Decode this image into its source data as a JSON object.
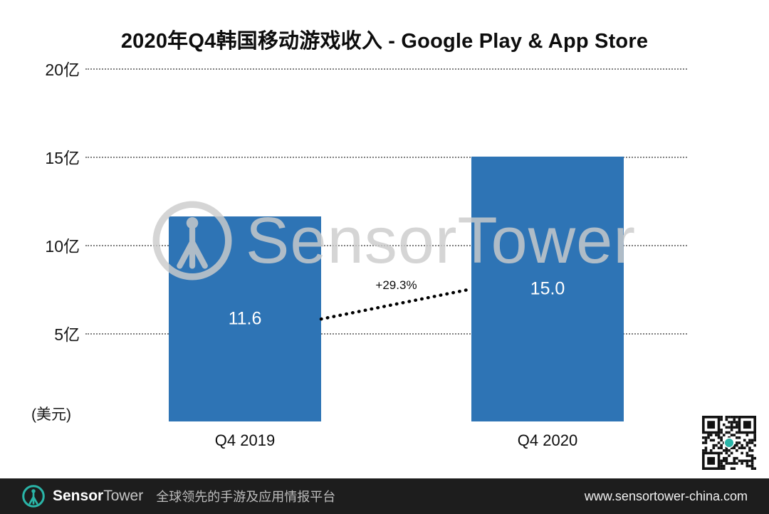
{
  "chart_data": {
    "type": "bar",
    "title": "2020年Q4韩国移动游戏收入 - Google Play & App Store",
    "categories": [
      "Q4 2019",
      "Q4 2020"
    ],
    "values": [
      11.6,
      15.0
    ],
    "value_labels": [
      "11.6",
      "15.0"
    ],
    "growth_label": "+29.3%",
    "unit_label": "(美元)",
    "ylim": [
      0,
      20
    ],
    "yticks": [
      20,
      15,
      10,
      5
    ],
    "ytick_labels": [
      "20亿",
      "15亿",
      "10亿",
      "5亿"
    ],
    "bar_color": "#2e74b5",
    "grid": "horizontal-dotted",
    "legend": "none"
  },
  "watermark": {
    "brand": "SensorTower"
  },
  "qr_code": {
    "center_dot_color": "#2ab5a8"
  },
  "footer": {
    "brand_sensor": "Sensor",
    "brand_tower": "Tower",
    "tagline": "全球领先的手游及应用情报平台",
    "website": "www.sensortower-china.com",
    "background": "#1d1d1d",
    "logo_color": "#2ab5a8"
  }
}
